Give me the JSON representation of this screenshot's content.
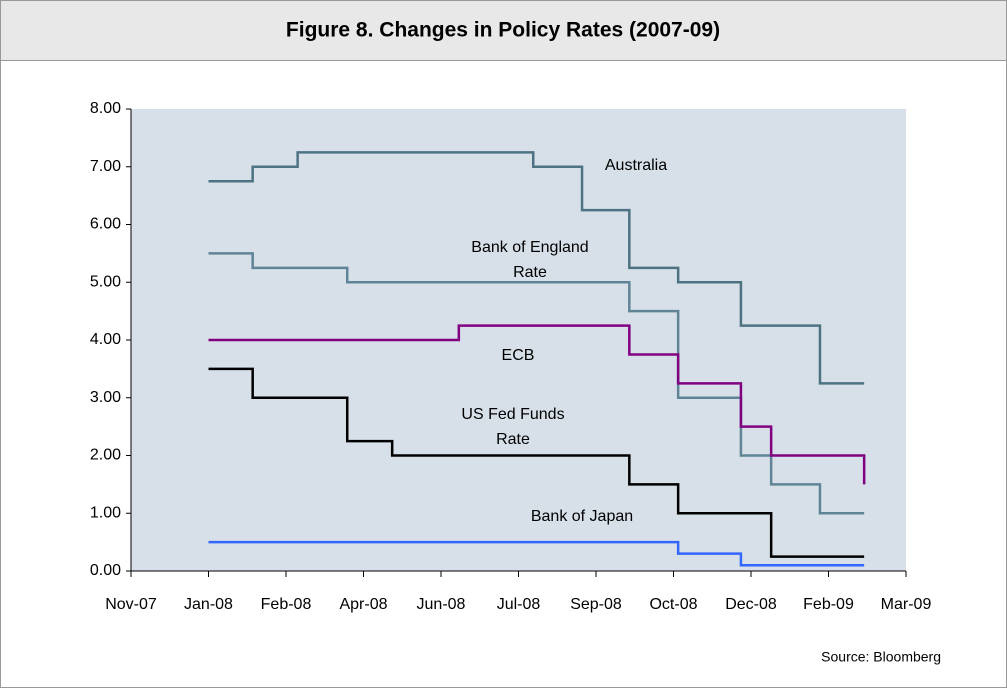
{
  "chart_data": {
    "type": "step",
    "title": "Figure 8. Changes in Policy Rates (2007-09)",
    "source": "Source: Bloomberg",
    "xlim": [
      0,
      10
    ],
    "xticks": [
      {
        "value": 0,
        "label": "Nov-07"
      },
      {
        "value": 1,
        "label": "Jan-08"
      },
      {
        "value": 2,
        "label": "Feb-08"
      },
      {
        "value": 3,
        "label": "Apr-08"
      },
      {
        "value": 4,
        "label": "Jun-08"
      },
      {
        "value": 5,
        "label": "Jul-08"
      },
      {
        "value": 6,
        "label": "Sep-08"
      },
      {
        "value": 7,
        "label": "Oct-08"
      },
      {
        "value": 8,
        "label": "Dec-08"
      },
      {
        "value": 9,
        "label": "Feb-09"
      },
      {
        "value": 10,
        "label": "Mar-09"
      }
    ],
    "ylim": [
      0,
      8
    ],
    "yticks": [
      {
        "value": 0,
        "label": "0.00"
      },
      {
        "value": 1,
        "label": "1.00"
      },
      {
        "value": 2,
        "label": "2.00"
      },
      {
        "value": 3,
        "label": "3.00"
      },
      {
        "value": 4,
        "label": "4.00"
      },
      {
        "value": 5,
        "label": "5.00"
      },
      {
        "value": 6,
        "label": "6.00"
      },
      {
        "value": 7,
        "label": "7.00"
      },
      {
        "value": 8,
        "label": "8.00"
      }
    ],
    "grid": false,
    "series": [
      {
        "name": "Australia",
        "color": "#4d7383",
        "x": [
          1.0,
          1.57,
          2.15,
          5.19,
          5.82,
          6.43,
          7.06,
          7.87,
          8.89,
          9.46
        ],
        "values": [
          6.75,
          7.0,
          7.25,
          7.0,
          6.25,
          5.25,
          5.0,
          4.25,
          3.25,
          3.25
        ]
      },
      {
        "name": "Bank of England Rate",
        "color": "#5f8496",
        "x": [
          1.0,
          1.57,
          2.79,
          6.43,
          7.06,
          7.87,
          8.26,
          8.89,
          9.46
        ],
        "values": [
          5.5,
          5.25,
          5.0,
          4.5,
          3.0,
          2.0,
          1.5,
          1.0,
          1.0
        ]
      },
      {
        "name": "ECB",
        "color": "#800080",
        "x": [
          1.0,
          4.23,
          6.43,
          7.06,
          7.87,
          8.26,
          9.46
        ],
        "values": [
          4.0,
          4.25,
          3.75,
          3.25,
          2.5,
          2.0,
          1.5
        ]
      },
      {
        "name": "US Fed Funds Rate",
        "color": "#000000",
        "x": [
          1.0,
          1.57,
          2.79,
          3.37,
          6.43,
          7.06,
          8.26,
          9.46
        ],
        "values": [
          3.5,
          3.0,
          2.25,
          2.0,
          1.5,
          1.0,
          0.25,
          0.25
        ]
      },
      {
        "name": "Bank of Japan",
        "color": "#3366ff",
        "x": [
          1.0,
          7.06,
          7.87,
          9.46
        ],
        "values": [
          0.5,
          0.3,
          0.1,
          0.1
        ]
      }
    ],
    "annotations": [
      {
        "lines": [
          "Australia"
        ]
      },
      {
        "lines": [
          "Bank of England",
          "Rate"
        ]
      },
      {
        "lines": [
          "ECB"
        ]
      },
      {
        "lines": [
          "US Fed Funds",
          "Rate"
        ]
      },
      {
        "lines": [
          "Bank of Japan"
        ]
      }
    ]
  }
}
